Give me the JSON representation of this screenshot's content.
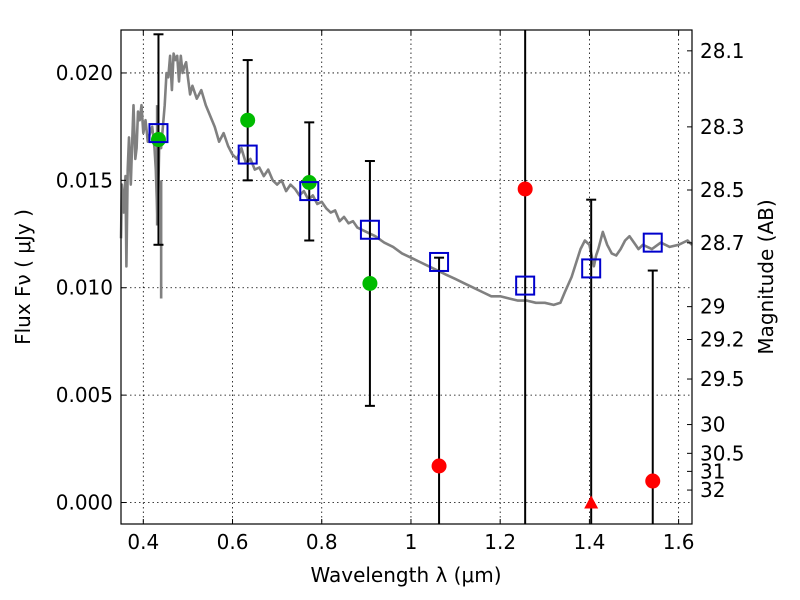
{
  "chart_data": {
    "type": "scatter",
    "xlabel": "Wavelength  λ (μm)",
    "ylabel": "Flux  Fν  ( μJy )",
    "y2label": "Magnitude (AB)",
    "xlim": [
      0.35,
      1.63
    ],
    "ylim": [
      -0.001,
      0.022
    ],
    "xticks": [
      {
        "value": 0.4,
        "label": "0.4"
      },
      {
        "value": 0.6,
        "label": "0.6"
      },
      {
        "value": 0.8,
        "label": "0.8"
      },
      {
        "value": 1.0,
        "label": "1"
      },
      {
        "value": 1.2,
        "label": "1.2"
      },
      {
        "value": 1.4,
        "label": "1.4"
      },
      {
        "value": 1.6,
        "label": "1.6"
      }
    ],
    "yticks": [
      {
        "value": 0.0,
        "label": "0.000"
      },
      {
        "value": 0.005,
        "label": "0.005"
      },
      {
        "value": 0.01,
        "label": "0.010"
      },
      {
        "value": 0.015,
        "label": "0.015"
      },
      {
        "value": 0.02,
        "label": "0.020"
      }
    ],
    "mag_ticks": [
      {
        "flux": 0.02103,
        "label": "28.1"
      },
      {
        "flux": 0.01749,
        "label": "28.3"
      },
      {
        "flux": 0.01455,
        "label": "28.5"
      },
      {
        "flux": 0.01209,
        "label": "28.7"
      },
      {
        "flux": 0.00912,
        "label": "29"
      },
      {
        "flux": 0.00759,
        "label": "29.2"
      },
      {
        "flux": 0.00575,
        "label": "29.5"
      },
      {
        "flux": 0.00363,
        "label": "30"
      },
      {
        "flux": 0.00229,
        "label": "30.5"
      },
      {
        "flux": 0.00145,
        "label": "31"
      },
      {
        "flux": 0.00058,
        "label": "32"
      }
    ],
    "colors": {
      "model_line": "#808080",
      "model_points": "#0000cc",
      "detections": "#00bb00",
      "nondetections": "#ff0000",
      "errorbars": "#000000"
    },
    "model_sed": {
      "x": [
        0.35,
        0.352,
        0.356,
        0.36,
        0.362,
        0.365,
        0.368,
        0.37,
        0.372,
        0.375,
        0.378,
        0.38,
        0.382,
        0.385,
        0.388,
        0.392,
        0.396,
        0.4,
        0.405,
        0.41,
        0.415,
        0.42,
        0.425,
        0.428,
        0.432,
        0.436,
        0.44,
        0.444,
        0.448,
        0.452,
        0.456,
        0.46,
        0.464,
        0.468,
        0.472,
        0.476,
        0.48,
        0.484,
        0.488,
        0.492,
        0.496,
        0.5,
        0.505,
        0.51,
        0.52,
        0.53,
        0.54,
        0.55,
        0.56,
        0.57,
        0.58,
        0.59,
        0.6,
        0.61,
        0.62,
        0.63,
        0.64,
        0.65,
        0.66,
        0.67,
        0.68,
        0.69,
        0.7,
        0.71,
        0.72,
        0.73,
        0.74,
        0.75,
        0.76,
        0.77,
        0.78,
        0.79,
        0.8,
        0.81,
        0.82,
        0.83,
        0.84,
        0.85,
        0.86,
        0.87,
        0.88,
        0.9,
        0.92,
        0.94,
        0.96,
        0.98,
        1.0,
        1.02,
        1.04,
        1.06,
        1.08,
        1.1,
        1.12,
        1.14,
        1.16,
        1.18,
        1.2,
        1.22,
        1.24,
        1.26,
        1.28,
        1.3,
        1.32,
        1.335,
        1.345,
        1.36,
        1.38,
        1.39,
        1.4,
        1.41,
        1.415,
        1.42,
        1.43,
        1.44,
        1.45,
        1.46,
        1.47,
        1.48,
        1.49,
        1.5,
        1.51,
        1.52,
        1.54,
        1.56,
        1.58,
        1.6,
        1.62,
        1.63
      ],
      "y": [
        0.0123,
        0.0148,
        0.0135,
        0.0152,
        0.011,
        0.0155,
        0.017,
        0.016,
        0.0148,
        0.0168,
        0.0185,
        0.0172,
        0.016,
        0.0165,
        0.0182,
        0.0178,
        0.0185,
        0.0172,
        0.0178,
        0.0168,
        0.0172,
        0.0175,
        0.0165,
        0.0155,
        0.013,
        0.017,
        0.0165,
        0.0175,
        0.0185,
        0.02,
        0.0198,
        0.0208,
        0.0192,
        0.0209,
        0.0206,
        0.0208,
        0.0196,
        0.0208,
        0.02,
        0.0203,
        0.0205,
        0.0198,
        0.019,
        0.0194,
        0.0188,
        0.0192,
        0.0185,
        0.018,
        0.0175,
        0.0168,
        0.0172,
        0.0166,
        0.0162,
        0.016,
        0.0165,
        0.0158,
        0.016,
        0.0155,
        0.0156,
        0.0152,
        0.0155,
        0.015,
        0.0148,
        0.015,
        0.0145,
        0.0148,
        0.0146,
        0.0143,
        0.0145,
        0.0141,
        0.0143,
        0.0139,
        0.014,
        0.0137,
        0.0135,
        0.0136,
        0.0131,
        0.0133,
        0.013,
        0.0131,
        0.0128,
        0.0126,
        0.0124,
        0.0121,
        0.0119,
        0.0116,
        0.0114,
        0.0112,
        0.011,
        0.0108,
        0.0106,
        0.0104,
        0.0102,
        0.01,
        0.0098,
        0.0096,
        0.0096,
        0.0095,
        0.0094,
        0.0094,
        0.0093,
        0.0093,
        0.0092,
        0.0093,
        0.0098,
        0.0105,
        0.0118,
        0.0122,
        0.012,
        0.011,
        0.0115,
        0.0118,
        0.0126,
        0.012,
        0.0116,
        0.0115,
        0.0118,
        0.0122,
        0.0124,
        0.0121,
        0.0118,
        0.012,
        0.0118,
        0.0121,
        0.0119,
        0.012,
        0.0122,
        0.012
      ]
    },
    "spike_segments": [
      {
        "x": 0.431,
        "y0": 0.0185,
        "y1": 0.0129
      },
      {
        "x": 0.44,
        "y0": 0.015,
        "y1": 0.0095
      }
    ],
    "model_points": {
      "x": [
        0.434,
        0.634,
        0.772,
        0.908,
        1.063,
        1.256,
        1.404,
        1.542
      ],
      "y": [
        0.0172,
        0.0162,
        0.0145,
        0.0127,
        0.0112,
        0.0101,
        0.0109,
        0.0121
      ]
    },
    "detections": {
      "x": [
        0.434,
        0.634,
        0.772,
        0.908
      ],
      "y": [
        0.0169,
        0.0178,
        0.0149,
        0.0102
      ]
    },
    "nondetections": {
      "x": [
        1.063,
        1.256,
        1.542
      ],
      "y": [
        0.0017,
        0.0146,
        0.001
      ]
    },
    "upper_limits": {
      "x": [
        1.404
      ],
      "y": [
        0.0
      ]
    },
    "errorbars": [
      {
        "x": 0.434,
        "low": 0.012,
        "high": 0.0218,
        "capped": true
      },
      {
        "x": 0.634,
        "low": 0.015,
        "high": 0.0206,
        "capped": true
      },
      {
        "x": 0.772,
        "low": 0.0122,
        "high": 0.0177,
        "capped": true
      },
      {
        "x": 0.908,
        "low": 0.0045,
        "high": 0.0159,
        "capped": true
      },
      {
        "x": 1.063,
        "low": -0.001,
        "high": 0.0114,
        "capped": true
      },
      {
        "x": 1.256,
        "low": -0.001,
        "high": 0.022,
        "capped": false
      },
      {
        "x": 1.404,
        "low": -0.001,
        "high": 0.0141,
        "capped": true
      },
      {
        "x": 1.542,
        "low": -0.001,
        "high": 0.0108,
        "capped": true
      }
    ]
  }
}
